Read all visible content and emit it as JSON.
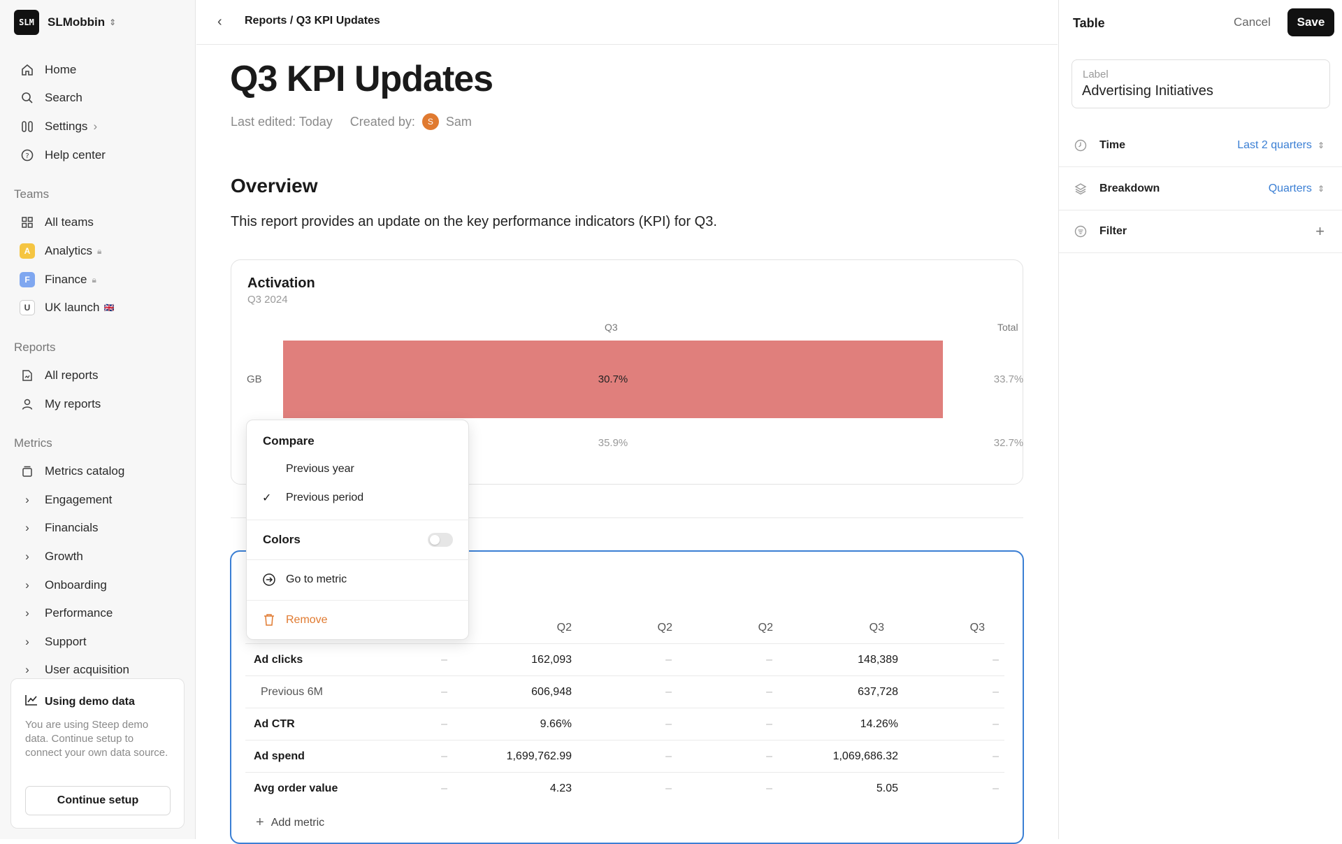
{
  "sidebar": {
    "workspace": {
      "logo_text": "SLM",
      "name": "SLMobbin"
    },
    "nav": [
      {
        "label": "Home",
        "icon": "home-icon"
      },
      {
        "label": "Search",
        "icon": "search-icon"
      },
      {
        "label": "Settings",
        "icon": "settings-icon"
      },
      {
        "label": "Help center",
        "icon": "help-icon"
      }
    ],
    "teams_heading": "Teams",
    "teams": [
      {
        "label": "All teams",
        "icon": "grid-icon"
      },
      {
        "label": "Analytics",
        "badge": "A",
        "badge_color": "#f5c542",
        "locked": true
      },
      {
        "label": "Finance",
        "badge": "F",
        "badge_color": "#7fa7f0",
        "locked": true
      },
      {
        "label": "UK launch",
        "badge": "U",
        "badge_color": "#ffffff",
        "flag": "🇬🇧"
      }
    ],
    "reports_heading": "Reports",
    "reports": [
      {
        "label": "All reports",
        "icon": "reports-icon"
      },
      {
        "label": "My reports",
        "icon": "user-icon"
      }
    ],
    "metrics_heading": "Metrics",
    "metrics": [
      {
        "label": "Metrics catalog",
        "icon": "catalog-icon"
      },
      {
        "label": "Engagement"
      },
      {
        "label": "Financials"
      },
      {
        "label": "Growth"
      },
      {
        "label": "Onboarding"
      },
      {
        "label": "Performance"
      },
      {
        "label": "Support"
      },
      {
        "label": "User acquisition"
      }
    ],
    "demo": {
      "title": "Using demo data",
      "description": "You are using Steep demo data. Continue setup to connect your own data source.",
      "button": "Continue setup"
    }
  },
  "main": {
    "breadcrumb": "Reports / Q3 KPI Updates",
    "title": "Q3 KPI Updates",
    "last_edited": "Last edited: Today",
    "created_by_label": "Created by:",
    "creator_initial": "S",
    "creator_name": "Sam",
    "overview_heading": "Overview",
    "overview_text": "This report provides an update on the key performance indicators (KPI) for Q3."
  },
  "activation_card": {
    "title": "Activation",
    "subtitle": "Q3 2024",
    "col_q3": "Q3",
    "col_total": "Total",
    "row_gb": "GB",
    "gb_q3": "30.7%",
    "gb_total": "33.7%",
    "row2_q3": "35.9%",
    "row2_total": "32.7%",
    "bar_color": "#e07f7c"
  },
  "table": {
    "headers": [
      "Q2",
      "Q2",
      "Q2",
      "Q3",
      "Q3"
    ],
    "rows": [
      {
        "name": "Ad clicks",
        "sub": false,
        "cells": [
          "–",
          "162,093",
          "–",
          "–",
          "148,389",
          "–"
        ]
      },
      {
        "name": "Previous 6M",
        "sub": true,
        "cells": [
          "–",
          "606,948",
          "–",
          "–",
          "637,728",
          "–"
        ]
      },
      {
        "name": "Ad CTR",
        "sub": false,
        "cells": [
          "–",
          "9.66%",
          "–",
          "–",
          "14.26%",
          "–"
        ]
      },
      {
        "name": "Ad spend",
        "sub": false,
        "cells": [
          "–",
          "1,699,762.99",
          "–",
          "–",
          "1,069,686.32",
          "–"
        ]
      },
      {
        "name": "Avg order value",
        "sub": false,
        "cells": [
          "–",
          "4.23",
          "–",
          "–",
          "5.05",
          "–"
        ]
      }
    ],
    "add_metric": "Add metric"
  },
  "menu": {
    "compare_heading": "Compare",
    "previous_year": "Previous year",
    "previous_period": "Previous period",
    "selected": "Previous period",
    "colors_heading": "Colors",
    "colors_on": false,
    "go_to_metric": "Go to metric",
    "remove": "Remove",
    "remove_color": "#e07a30"
  },
  "panel": {
    "title": "Table",
    "cancel": "Cancel",
    "save": "Save",
    "label_caption": "Label",
    "label_value": "Advertising Initiatives",
    "time_label": "Time",
    "time_value": "Last 2 quarters",
    "breakdown_label": "Breakdown",
    "breakdown_value": "Quarters",
    "filter_label": "Filter",
    "accent": "#3b7fd4"
  }
}
